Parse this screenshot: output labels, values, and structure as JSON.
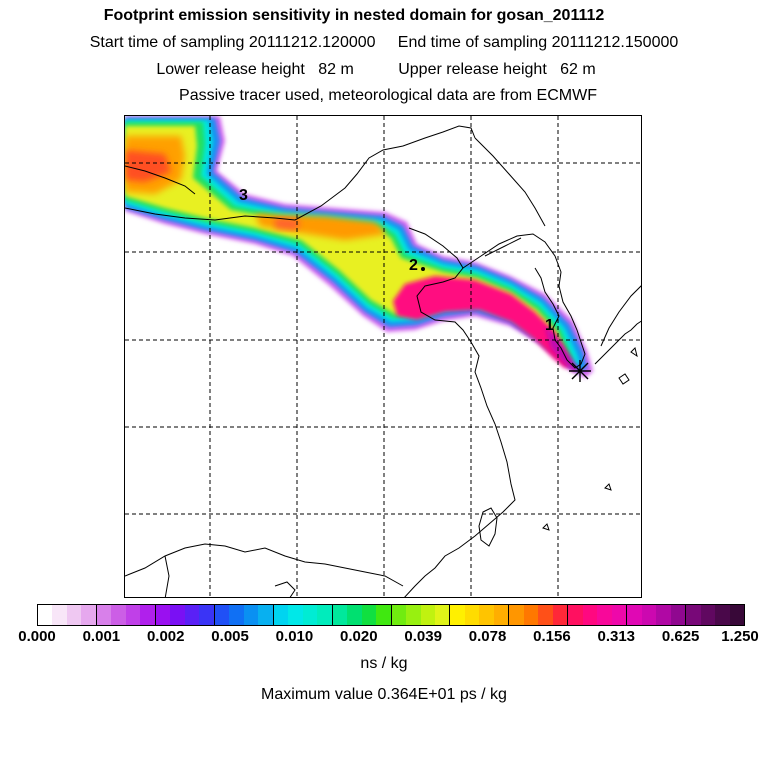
{
  "header": {
    "title": "Footprint emission sensitivity in nested domain for gosan_201112",
    "sampling_line": "Start time of sampling 20111212.120000     End time of sampling 20111212.150000",
    "release_line": "Lower release height   82 m          Upper release height   62 m",
    "tracer_line": "Passive tracer used, meteorological data are from ECMWF"
  },
  "map": {
    "point_labels": [
      "1",
      "2",
      "3"
    ],
    "receptor_marker": "asterisk-star-icon"
  },
  "colorbar": {
    "tick_labels": [
      "0.000",
      "0.001",
      "0.002",
      "0.005",
      "0.010",
      "0.020",
      "0.039",
      "0.078",
      "0.156",
      "0.313",
      "0.625",
      "1.250"
    ],
    "segments": [
      [
        "#ffffff",
        "#f8e6f8",
        "#efc8f2",
        "#e6a8ee"
      ],
      [
        "#d880ea",
        "#cc5ee6",
        "#c040e8",
        "#b020ec"
      ],
      [
        "#9a10f0",
        "#7a10f4",
        "#5a20f6",
        "#3a34f6"
      ],
      [
        "#2050f6",
        "#1070f4",
        "#0a90f2",
        "#08b0f0"
      ],
      [
        "#00d4f0",
        "#00e8e8",
        "#00ecd4",
        "#00ecbc"
      ],
      [
        "#00e89c",
        "#00e070",
        "#10e040",
        "#40e810"
      ],
      [
        "#70ec10",
        "#98f010",
        "#c0f210",
        "#e0f418"
      ],
      [
        "#fff000",
        "#ffdc00",
        "#ffc400",
        "#ffae00"
      ],
      [
        "#ff9600",
        "#ff7800",
        "#ff5018",
        "#ff2838"
      ],
      [
        "#ff1060",
        "#ff0880",
        "#f8089a",
        "#ee08aa"
      ],
      [
        "#e008b4",
        "#cc08b0",
        "#b008a4",
        "#900890"
      ],
      [
        "#780878",
        "#600860",
        "#4a084a",
        "#380838"
      ]
    ],
    "unit": "ns / kg"
  },
  "footer": {
    "max_value": "Maximum value  0.364E+01 ps / kg"
  }
}
